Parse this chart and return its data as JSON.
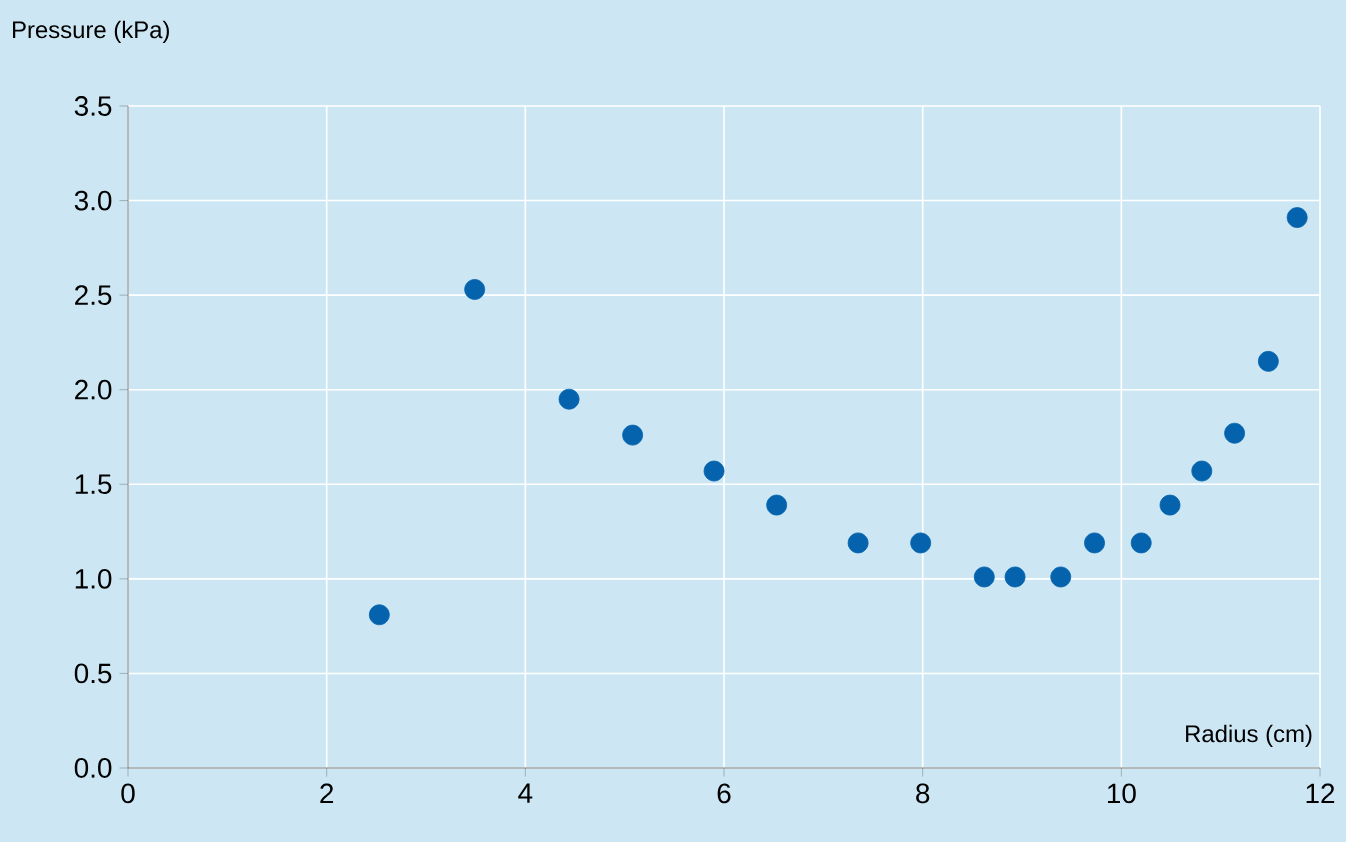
{
  "chart_data": {
    "type": "scatter",
    "xlabel": "Radius (cm)",
    "ylabel": "Pressure (kPa)",
    "x": [
      2.53,
      3.49,
      4.44,
      5.08,
      5.9,
      6.53,
      7.35,
      7.98,
      8.62,
      8.93,
      9.39,
      9.73,
      10.2,
      10.49,
      10.81,
      11.14,
      11.48,
      11.77
    ],
    "values": [
      0.81,
      2.53,
      1.95,
      1.76,
      1.57,
      1.39,
      1.19,
      1.19,
      1.01,
      1.01,
      1.01,
      1.19,
      1.19,
      1.39,
      1.57,
      1.77,
      2.15,
      2.91
    ],
    "color": "#0563ad",
    "marker": "circle",
    "grid": true,
    "xlim": [
      0,
      12
    ],
    "ylim": [
      0,
      3.5
    ],
    "xticks": [
      0,
      2,
      4,
      6,
      8,
      10,
      12
    ],
    "yticks": [
      {
        "value": 0,
        "label": "0.0"
      },
      {
        "value": 0.5,
        "label": "0.5"
      },
      {
        "value": 1,
        "label": "1.0"
      },
      {
        "value": 1.5,
        "label": "1.5"
      },
      {
        "value": 2,
        "label": "2.0"
      },
      {
        "value": 2.5,
        "label": "2.5"
      },
      {
        "value": 3,
        "label": "3.0"
      },
      {
        "value": 3.5,
        "label": "3.5"
      }
    ]
  }
}
